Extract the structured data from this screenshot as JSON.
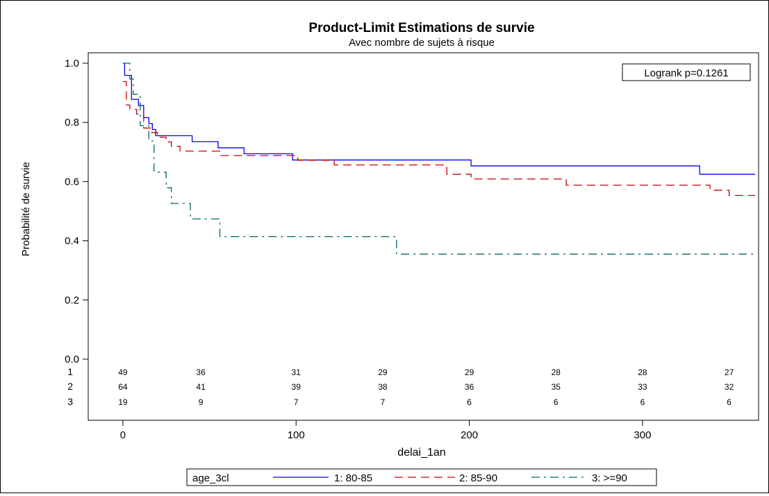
{
  "chart_data": {
    "type": "line",
    "step": true,
    "title": "Product-Limit Estimations de survie",
    "subtitle": "Avec nombre de sujets à risque",
    "xlabel": "delai_1an",
    "ylabel": "Probabilité de survie",
    "xlim": [
      -20,
      367
    ],
    "ylim": [
      -0.04,
      1.0
    ],
    "x_ticks": [
      0,
      100,
      200,
      300
    ],
    "y_ticks": [
      0.0,
      0.2,
      0.4,
      0.6,
      0.8,
      1.0
    ],
    "y_tick_labels": [
      "0.0",
      "0.2",
      "0.4",
      "0.6",
      "0.8",
      "1.0"
    ],
    "annotation": "Logrank p=0.1261",
    "legend": {
      "title": "age_3cl",
      "placement": "bottom"
    },
    "series": [
      {
        "name": "1: 80-85",
        "color": "#0000ff",
        "dash": "solid",
        "points": [
          [
            0,
            1.0
          ],
          [
            1,
            0.959
          ],
          [
            5,
            0.878
          ],
          [
            9,
            0.857
          ],
          [
            12,
            0.816
          ],
          [
            15,
            0.796
          ],
          [
            17,
            0.776
          ],
          [
            19,
            0.755
          ],
          [
            29,
            0.755
          ],
          [
            40,
            0.735
          ],
          [
            55,
            0.714
          ],
          [
            70,
            0.694
          ],
          [
            98,
            0.673
          ],
          [
            200,
            0.673
          ],
          [
            201,
            0.653
          ],
          [
            332,
            0.653
          ],
          [
            333,
            0.625
          ],
          [
            365,
            0.625
          ]
        ]
      },
      {
        "name": "2: 85-90",
        "color": "#cc0000",
        "dash": "long",
        "points": [
          [
            0,
            0.938
          ],
          [
            2,
            0.859
          ],
          [
            4,
            0.844
          ],
          [
            8,
            0.828
          ],
          [
            12,
            0.781
          ],
          [
            16,
            0.766
          ],
          [
            20,
            0.75
          ],
          [
            25,
            0.734
          ],
          [
            28,
            0.719
          ],
          [
            33,
            0.703
          ],
          [
            45,
            0.703
          ],
          [
            56,
            0.688
          ],
          [
            100,
            0.688
          ],
          [
            101,
            0.672
          ],
          [
            121,
            0.672
          ],
          [
            122,
            0.656
          ],
          [
            186,
            0.656
          ],
          [
            187,
            0.625
          ],
          [
            201,
            0.609
          ],
          [
            255,
            0.609
          ],
          [
            256,
            0.588
          ],
          [
            338,
            0.588
          ],
          [
            339,
            0.571
          ],
          [
            350,
            0.553
          ],
          [
            365,
            0.553
          ]
        ]
      },
      {
        "name": "3: >=90",
        "color": "#006666",
        "dash": "dashdot",
        "points": [
          [
            0,
            1.0
          ],
          [
            4,
            0.947
          ],
          [
            6,
            0.895
          ],
          [
            10,
            0.789
          ],
          [
            14,
            0.789
          ],
          [
            15,
            0.737
          ],
          [
            18,
            0.632
          ],
          [
            25,
            0.579
          ],
          [
            28,
            0.526
          ],
          [
            36,
            0.526
          ],
          [
            39,
            0.474
          ],
          [
            55,
            0.474
          ],
          [
            56,
            0.414
          ],
          [
            157,
            0.414
          ],
          [
            158,
            0.355
          ],
          [
            365,
            0.355
          ]
        ]
      }
    ],
    "at_risk": {
      "x": [
        0,
        45,
        100,
        150,
        200,
        250,
        300,
        350
      ],
      "rows": [
        {
          "label": "1",
          "values": [
            "49",
            "36",
            "31",
            "29",
            "29",
            "28",
            "28",
            "27"
          ]
        },
        {
          "label": "2",
          "values": [
            "64",
            "41",
            "39",
            "38",
            "36",
            "35",
            "33",
            "32"
          ]
        },
        {
          "label": "3",
          "values": [
            "19",
            "9",
            "7",
            "7",
            "6",
            "6",
            "6",
            "6"
          ]
        }
      ]
    }
  }
}
